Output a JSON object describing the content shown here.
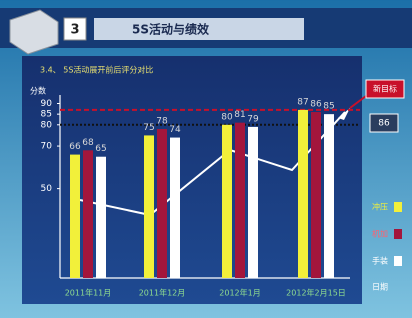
{
  "header": {
    "number": "3",
    "title": "5S活动与绩效"
  },
  "chart_data": {
    "type": "bar",
    "title": "3.4、 5S活动展开前后评分对比",
    "y_label": "分数",
    "x_label": "日期",
    "categories": [
      "2011年11月",
      "2011年12月",
      "2012年1月",
      "2012年2月15日"
    ],
    "series": [
      {
        "name": "冲压",
        "color": "#f2f03a",
        "values": [
          66,
          75,
          80,
          87
        ]
      },
      {
        "name": "机加",
        "color": "#a3163c",
        "values": [
          68,
          78,
          81,
          86
        ]
      },
      {
        "name": "手装",
        "color": "#ffffff",
        "values": [
          65,
          74,
          79,
          85
        ]
      }
    ],
    "ylim": [
      8,
      94
    ],
    "yticks": [
      50,
      70,
      80,
      85,
      90
    ],
    "reference_lines": [
      {
        "value": 87,
        "color": "#c8102a"
      },
      {
        "value": 80,
        "color": "#111111"
      }
    ],
    "callouts": [
      "新目标",
      "86"
    ]
  }
}
